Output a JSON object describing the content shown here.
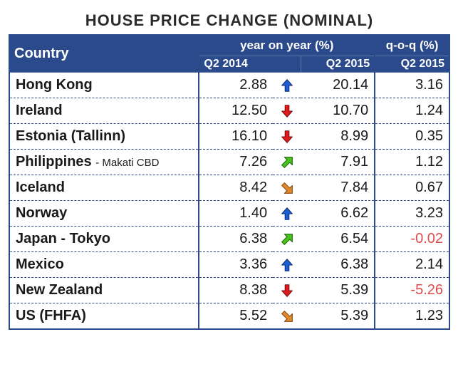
{
  "title": "HOUSE PRICE CHANGE (NOMINAL)",
  "header": {
    "country": "Country",
    "yoy_group": "year on year (%)",
    "qoq_group": "q-o-q (%)",
    "q2_2014": "Q2 2014",
    "q2_2015": "Q2 2015",
    "qoq_q2_2015": "Q2 2015"
  },
  "arrow_colors": {
    "up_blue": {
      "fill": "#1d5dd6",
      "stroke": "#0a2e70"
    },
    "down_red": {
      "fill": "#e11b1b",
      "stroke": "#7a0d0d"
    },
    "up_diag_green": {
      "fill": "#49c21e",
      "stroke": "#1f6a08"
    },
    "down_diag_orange": {
      "fill": "#e08a2e",
      "stroke": "#8a4a0d"
    }
  },
  "rows": [
    {
      "country": "Hong Kong",
      "sub": "",
      "q2_2014": "2.88",
      "arrow": "up_blue",
      "q2_2015": "20.14",
      "qoq": "3.16",
      "neg": false
    },
    {
      "country": "Ireland",
      "sub": "",
      "q2_2014": "12.50",
      "arrow": "down_red",
      "q2_2015": "10.70",
      "qoq": "1.24",
      "neg": false
    },
    {
      "country": "Estonia (Tallinn)",
      "sub": "",
      "q2_2014": "16.10",
      "arrow": "down_red",
      "q2_2015": "8.99",
      "qoq": "0.35",
      "neg": false
    },
    {
      "country": "Philippines",
      "sub": "- Makati CBD",
      "q2_2014": "7.26",
      "arrow": "up_diag_green",
      "q2_2015": "7.91",
      "qoq": "1.12",
      "neg": false
    },
    {
      "country": "Iceland",
      "sub": "",
      "q2_2014": "8.42",
      "arrow": "down_diag_orange",
      "q2_2015": "7.84",
      "qoq": "0.67",
      "neg": false
    },
    {
      "country": "Norway",
      "sub": "",
      "q2_2014": "1.40",
      "arrow": "up_blue",
      "q2_2015": "6.62",
      "qoq": "3.23",
      "neg": false
    },
    {
      "country": "Japan - Tokyo",
      "sub": "",
      "q2_2014": "6.38",
      "arrow": "up_diag_green",
      "q2_2015": "6.54",
      "qoq": "-0.02",
      "neg": true
    },
    {
      "country": "Mexico",
      "sub": "",
      "q2_2014": "3.36",
      "arrow": "up_blue",
      "q2_2015": "6.38",
      "qoq": "2.14",
      "neg": false
    },
    {
      "country": "New Zealand",
      "sub": "",
      "q2_2014": "8.38",
      "arrow": "down_red",
      "q2_2015": "5.39",
      "qoq": "-5.26",
      "neg": true
    },
    {
      "country": "US (FHFA)",
      "sub": "",
      "q2_2014": "5.52",
      "arrow": "down_diag_orange",
      "q2_2015": "5.39",
      "qoq": "1.23",
      "neg": false
    }
  ]
}
